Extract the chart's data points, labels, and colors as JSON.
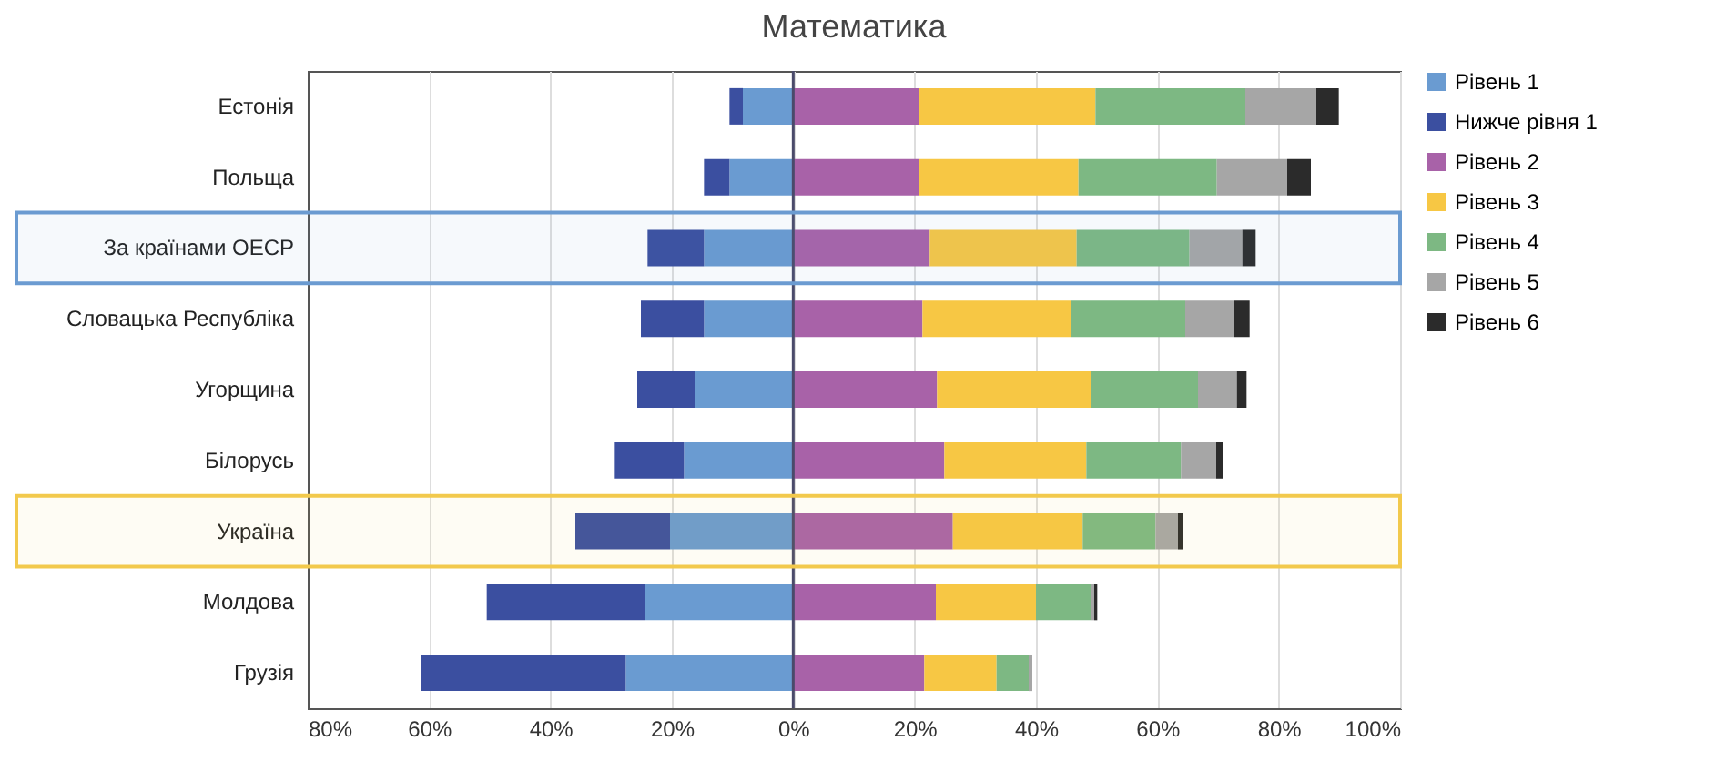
{
  "chart_data": {
    "type": "bar",
    "orientation": "horizontal",
    "stacked": true,
    "title": "Математика",
    "categories": [
      "Естонія",
      "Польща",
      "За країнами ОЕСР",
      "Словацька Республіка",
      "Угорщина",
      "Білорусь",
      "Україна",
      "Молдова",
      "Грузія"
    ],
    "series": [
      {
        "name": "Рівень 1",
        "color": "#6a9bd1",
        "values": [
          -8.3,
          -10.5,
          -14.7,
          -14.7,
          -16.1,
          -18,
          -20.3,
          -24.4,
          -27.6
        ]
      },
      {
        "name": "Нижче рівня 1",
        "color": "#3b4fa0",
        "values": [
          -2.2,
          -4.2,
          -9.3,
          -10.4,
          -9.6,
          -11.4,
          -15.6,
          -26.1,
          -33.7
        ]
      },
      {
        "name": "Рівень 2",
        "color": "#a862a8",
        "values": [
          20.8,
          20.8,
          22.5,
          21.3,
          23.7,
          24.9,
          26.3,
          23.5,
          21.6
        ]
      },
      {
        "name": "Рівень 3",
        "color": "#f7c744",
        "values": [
          29,
          26.2,
          24.2,
          24.4,
          25.4,
          23.4,
          21.4,
          16.5,
          11.9
        ]
      },
      {
        "name": "Рівень 4",
        "color": "#7db883",
        "values": [
          24.7,
          22.8,
          18.6,
          18.9,
          17.6,
          15.6,
          12,
          9,
          5.3
        ]
      },
      {
        "name": "Рівень 5",
        "color": "#a6a6a6",
        "values": [
          11.7,
          11.6,
          8.7,
          8.1,
          6.4,
          5.8,
          3.7,
          0.6,
          0.6
        ]
      },
      {
        "name": "Рівень 6",
        "color": "#2b2b2b",
        "values": [
          3.7,
          3.9,
          2.2,
          2.5,
          1.6,
          1.2,
          0.9,
          0.5,
          null
        ]
      }
    ],
    "xlim": [
      -80,
      100
    ],
    "xticks": [
      {
        "value": -80,
        "label": "80%"
      },
      {
        "value": -60,
        "label": "60%"
      },
      {
        "value": -40,
        "label": "40%"
      },
      {
        "value": -20,
        "label": "20%"
      },
      {
        "value": 0,
        "label": "0%"
      },
      {
        "value": 20,
        "label": "20%"
      },
      {
        "value": 40,
        "label": "40%"
      },
      {
        "value": 60,
        "label": "60%"
      },
      {
        "value": 80,
        "label": "80%"
      },
      {
        "value": 100,
        "label": "100%"
      }
    ],
    "grid": "x",
    "legend": "right",
    "ref_lines": [
      {
        "axis": "x",
        "value": 0,
        "color": "#4a4a6a"
      }
    ],
    "bands": [
      {
        "axis": "y",
        "from": "За країнами ОЕСР",
        "to": "За країнами ОЕСР",
        "color": "#6b9bd1"
      },
      {
        "axis": "y",
        "from": "Україна",
        "to": "Україна",
        "color": "#f2c94c"
      }
    ]
  }
}
